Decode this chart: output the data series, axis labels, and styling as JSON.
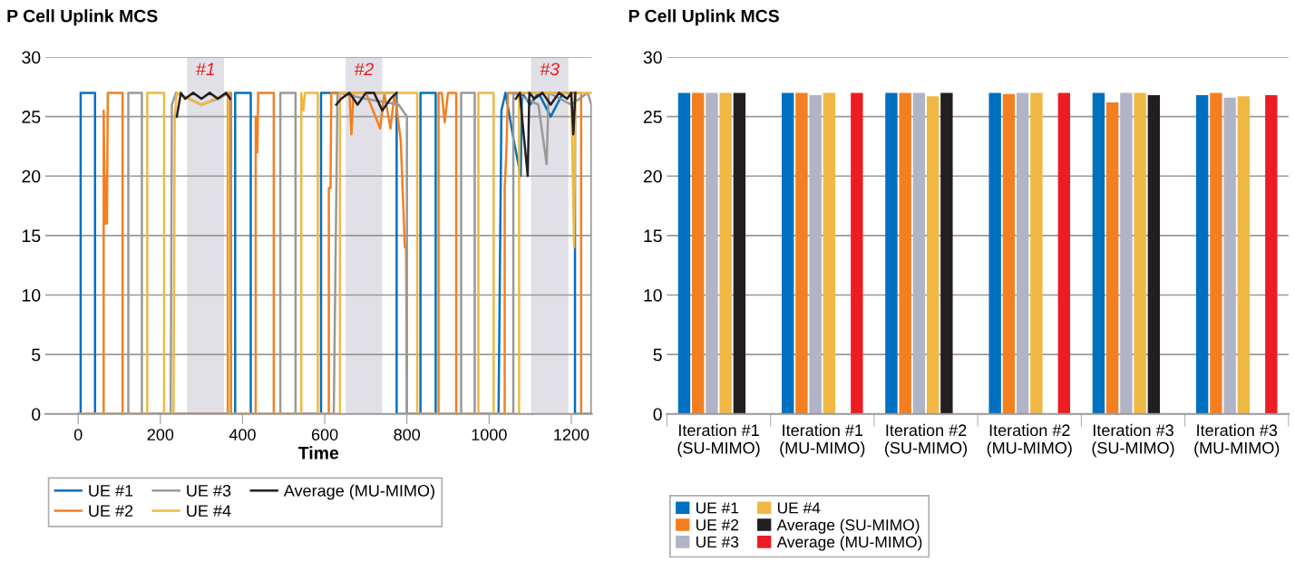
{
  "chart_data": [
    {
      "type": "line",
      "title": "P Cell Uplink MCS",
      "xlabel": "Time",
      "xlim": [
        -80,
        1250
      ],
      "xticks": [
        0,
        200,
        400,
        600,
        800,
        1000,
        1200
      ],
      "ylim": [
        0,
        30
      ],
      "yticks": [
        0,
        5,
        10,
        15,
        20,
        25,
        30
      ],
      "grid": "y",
      "legend": "bottom",
      "marker": "none",
      "line_style": "solid",
      "bands": [
        {
          "axis": "x",
          "from": 265,
          "to": 355,
          "label": "#1",
          "color": "#e0e0e6"
        },
        {
          "axis": "x",
          "from": 651,
          "to": 740,
          "label": "#2",
          "color": "#e0e0e6"
        },
        {
          "axis": "x",
          "from": 1102,
          "to": 1193,
          "label": "#3",
          "color": "#e0e0e6"
        }
      ],
      "series": [
        {
          "name": "UE #1",
          "color": "#0070c0",
          "x": [
            0,
            6,
            6,
            41,
            41,
            382,
            382,
            420,
            420,
            591,
            591,
            650,
            700,
            740,
            775,
            775,
            833,
            833,
            870,
            870,
            1023,
            1030,
            1040,
            1060,
            1077,
            1080,
            1100,
            1120,
            1150,
            1180,
            1209,
            1209,
            1250
          ],
          "values": [
            0,
            0,
            27,
            27,
            0,
            0,
            27,
            27,
            0,
            0,
            27,
            27,
            27,
            27,
            27,
            0,
            0,
            27,
            27,
            0,
            0,
            25.5,
            27,
            23,
            20,
            27,
            26,
            27,
            25,
            27,
            27,
            0,
            0
          ]
        },
        {
          "name": "UE #2",
          "color": "#f47f20",
          "x": [
            0,
            62,
            62,
            65,
            68,
            70,
            72,
            108,
            108,
            364,
            364,
            372,
            372,
            432,
            432,
            436,
            438,
            476,
            476,
            610,
            610,
            614,
            616,
            660,
            665,
            670,
            700,
            735,
            745,
            760,
            770,
            785,
            795,
            798,
            800,
            877,
            877,
            885,
            892,
            900,
            920,
            920,
            1038,
            1038,
            1042,
            1046,
            1224,
            1224,
            1250
          ],
          "values": [
            0,
            0,
            25.5,
            16,
            20,
            16,
            27,
            27,
            0,
            0,
            27,
            27,
            0,
            0,
            25,
            22,
            27,
            27,
            0,
            0,
            19,
            19,
            27,
            27,
            23.5,
            27,
            27,
            24,
            27,
            24,
            27,
            23,
            14,
            14,
            0,
            0,
            27,
            27,
            24.5,
            27,
            27,
            0,
            0,
            19,
            22,
            27,
            27,
            0,
            0
          ]
        },
        {
          "name": "UE #3",
          "color": "#999999",
          "x": [
            0,
            122,
            122,
            155,
            155,
            225,
            228,
            238,
            300,
            340,
            368,
            368,
            492,
            492,
            529,
            529,
            622,
            631,
            700,
            780,
            800,
            800,
            932,
            932,
            965,
            965,
            1059,
            1059,
            1120,
            1140,
            1145,
            1200,
            1240,
            1249,
            1249
          ],
          "values": [
            0,
            0,
            27,
            27,
            0,
            0,
            26,
            27,
            26,
            26.5,
            27,
            0,
            0,
            27,
            27,
            0,
            0,
            27,
            26.5,
            26,
            25,
            0,
            0,
            27,
            27,
            0,
            0,
            27,
            26,
            21,
            27,
            26,
            27,
            26,
            0
          ]
        },
        {
          "name": "UE #4",
          "color": "#f0b843",
          "x": [
            0,
            168,
            168,
            209,
            209,
            232,
            235,
            240,
            300,
            365,
            368,
            543,
            543,
            548,
            552,
            583,
            583,
            637,
            637,
            760,
            825,
            825,
            974,
            974,
            1011,
            1011,
            1073,
            1073,
            1200,
            1207,
            1210,
            1250
          ],
          "values": [
            0,
            0,
            27,
            27,
            0,
            0,
            25,
            27,
            26,
            27,
            0,
            0,
            27,
            25.5,
            27,
            27,
            0,
            0,
            27,
            27,
            27,
            0,
            0,
            27,
            27,
            0,
            0,
            27,
            27,
            14,
            27,
            27
          ]
        },
        {
          "name": "Average (MU-MIMO)",
          "color": "#231f20",
          "x": [
            240,
            250,
            260,
            280,
            300,
            320,
            340,
            360,
            370,
            371,
            628,
            640,
            660,
            680,
            700,
            720,
            740,
            760,
            775,
            776,
            1065,
            1075,
            1080,
            1094,
            1098,
            1110,
            1130,
            1150,
            1170,
            1190,
            1200,
            1205,
            1210
          ],
          "values": [
            25,
            27,
            26.5,
            27,
            26.5,
            27,
            26.5,
            27,
            26.5,
            null,
            26,
            26.5,
            27,
            26,
            27,
            27,
            25.5,
            26.5,
            27,
            null,
            26.5,
            27,
            25,
            20,
            27,
            26.5,
            27,
            26,
            27,
            26.5,
            27,
            23.5,
            27
          ]
        }
      ]
    },
    {
      "type": "bar",
      "title": "P Cell Uplink MCS",
      "categories": [
        "Iteration #1\n(SU-MIMO)",
        "Iteration #1\n(MU-MIMO)",
        "Iteration #2\n(SU-MIMO)",
        "Iteration #2\n(MU-MIMO)",
        "Iteration #3\n(SU-MIMO)",
        "Iteration #3\n(MU-MIMO)"
      ],
      "ylim": [
        0,
        30
      ],
      "yticks": [
        0,
        5,
        10,
        15,
        20,
        25,
        30
      ],
      "grid": "y",
      "legend": "bottom",
      "series": [
        {
          "name": "UE #1",
          "color": "#0070c0",
          "values": [
            27,
            27,
            27,
            27,
            27,
            26.8
          ]
        },
        {
          "name": "UE #2",
          "color": "#f47f20",
          "values": [
            27,
            27,
            27,
            26.9,
            26.2,
            27
          ]
        },
        {
          "name": "UE #3",
          "color": "#b0b4c6",
          "values": [
            27,
            26.8,
            27,
            27,
            27,
            26.6
          ]
        },
        {
          "name": "UE #4",
          "color": "#f0b843",
          "values": [
            27,
            27,
            26.7,
            27,
            27,
            26.7
          ]
        },
        {
          "name": "Average (SU-MIMO)",
          "color": "#231f20",
          "values": [
            27,
            null,
            27,
            null,
            26.8,
            null
          ]
        },
        {
          "name": "Average (MU-MIMO)",
          "color": "#ed1c24",
          "values": [
            null,
            27,
            null,
            27,
            null,
            26.8
          ]
        }
      ]
    }
  ]
}
